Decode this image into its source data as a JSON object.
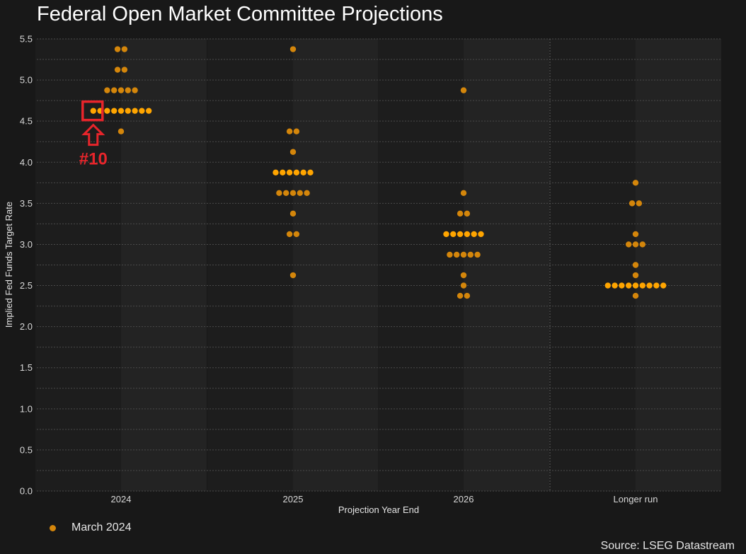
{
  "title": "Federal Open Market Committee Projections",
  "source": "Source: LSEG Datastream",
  "legend": {
    "label": "March 2024",
    "color": "#d4860b"
  },
  "colors": {
    "background": "#181818",
    "panel_dark": "#1d1d1d",
    "panel_light": "#232323",
    "dot_normal": "#d4860b",
    "dot_highlight": "#ffa500",
    "annotation": "#e8252b"
  },
  "annotation": {
    "label": "#10",
    "category": "2024",
    "value": 4.625,
    "dot_index": 0
  },
  "chart_data": {
    "type": "scatter",
    "subtype": "dot-plot",
    "title": "Federal Open Market Committee Projections",
    "xlabel": "Projection Year End",
    "ylabel": "Implied Fed Funds Target Rate",
    "ylim": [
      0,
      5.5
    ],
    "yticks": [
      0.0,
      0.5,
      1.0,
      1.5,
      2.0,
      2.5,
      3.0,
      3.5,
      4.0,
      4.5,
      5.0,
      5.5
    ],
    "grid": true,
    "legend_position": "bottom-left",
    "categories": [
      "2024",
      "2025",
      "2026",
      "Longer run"
    ],
    "series": [
      {
        "name": "March 2024",
        "points": {
          "2024": [
            {
              "value": 5.375,
              "count": 2
            },
            {
              "value": 5.125,
              "count": 2
            },
            {
              "value": 4.875,
              "count": 5
            },
            {
              "value": 4.625,
              "count": 9
            },
            {
              "value": 4.375,
              "count": 1
            }
          ],
          "2025": [
            {
              "value": 5.375,
              "count": 1
            },
            {
              "value": 4.375,
              "count": 2
            },
            {
              "value": 4.125,
              "count": 1
            },
            {
              "value": 3.875,
              "count": 6
            },
            {
              "value": 3.625,
              "count": 5
            },
            {
              "value": 3.375,
              "count": 1
            },
            {
              "value": 3.125,
              "count": 2
            },
            {
              "value": 2.625,
              "count": 1
            }
          ],
          "2026": [
            {
              "value": 4.875,
              "count": 1
            },
            {
              "value": 3.625,
              "count": 1
            },
            {
              "value": 3.375,
              "count": 2
            },
            {
              "value": 3.125,
              "count": 6
            },
            {
              "value": 2.875,
              "count": 5
            },
            {
              "value": 2.625,
              "count": 1
            },
            {
              "value": 2.5,
              "count": 1
            },
            {
              "value": 2.375,
              "count": 2
            }
          ],
          "Longer run": [
            {
              "value": 3.75,
              "count": 1
            },
            {
              "value": 3.5,
              "count": 2
            },
            {
              "value": 3.125,
              "count": 1
            },
            {
              "value": 3.0,
              "count": 3
            },
            {
              "value": 2.75,
              "count": 1
            },
            {
              "value": 2.625,
              "count": 1
            },
            {
              "value": 2.5,
              "count": 9
            },
            {
              "value": 2.375,
              "count": 1
            }
          ]
        }
      }
    ]
  }
}
